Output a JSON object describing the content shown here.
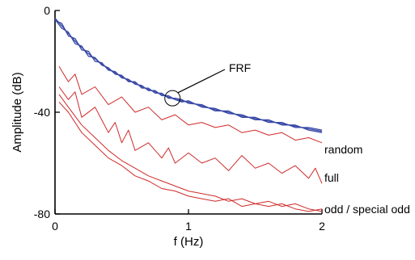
{
  "chart_data": {
    "type": "line",
    "title": "",
    "xlabel": "f (Hz)",
    "ylabel": "Amplitude (dB)",
    "xlim": [
      0,
      2
    ],
    "ylim": [
      -80,
      0
    ],
    "xticks": [
      0,
      1,
      2
    ],
    "yticks": [
      0,
      -40,
      -80
    ],
    "grid": false,
    "legend": "none",
    "colors": {
      "frf": "#3a4aa8",
      "noise": "#d02a2a",
      "axis": "#000000"
    },
    "annotations": {
      "frf": {
        "label": "FRF",
        "x": 0.88,
        "y": -34.5
      },
      "random": "random",
      "full": "full",
      "odd": "odd / special odd"
    },
    "series": [
      {
        "group": "frf",
        "x": [
          0,
          0.05,
          0.1,
          0.15,
          0.2,
          0.25,
          0.3,
          0.35,
          0.4,
          0.45,
          0.5,
          0.55,
          0.6,
          0.65,
          0.7,
          0.75,
          0.8,
          0.85,
          0.9,
          0.95,
          1.0,
          1.1,
          1.2,
          1.3,
          1.4,
          1.5,
          1.6,
          1.7,
          1.8,
          1.9,
          2.0
        ],
        "values": [
          -3,
          -6,
          -9,
          -12,
          -14.5,
          -17,
          -19,
          -21,
          -23,
          -24.5,
          -26,
          -27.5,
          -28.5,
          -30,
          -31,
          -32,
          -33,
          -34,
          -35,
          -35.5,
          -36,
          -37.5,
          -39,
          -40,
          -41.5,
          -42.5,
          -43.5,
          -44.5,
          -45.5,
          -46.5,
          -47.5
        ]
      },
      {
        "group": "frf",
        "x": [
          0,
          0.05,
          0.1,
          0.15,
          0.2,
          0.25,
          0.3,
          0.35,
          0.4,
          0.45,
          0.5,
          0.55,
          0.6,
          0.65,
          0.7,
          0.75,
          0.8,
          0.85,
          0.9,
          0.95,
          1.0,
          1.1,
          1.2,
          1.3,
          1.4,
          1.5,
          1.6,
          1.7,
          1.8,
          1.9,
          2.0
        ],
        "values": [
          -4,
          -5,
          -10,
          -11,
          -15.5,
          -16,
          -20,
          -20.5,
          -23.5,
          -24,
          -26.5,
          -27,
          -29,
          -29.5,
          -31.5,
          -31.5,
          -33.5,
          -33.5,
          -35,
          -36,
          -35.5,
          -38,
          -38.5,
          -40.5,
          -41,
          -43,
          -43,
          -45,
          -45,
          -47,
          -48
        ]
      },
      {
        "group": "frf",
        "x": [
          0,
          0.05,
          0.1,
          0.15,
          0.2,
          0.25,
          0.3,
          0.35,
          0.4,
          0.45,
          0.5,
          0.55,
          0.6,
          0.65,
          0.7,
          0.75,
          0.8,
          0.85,
          0.9,
          0.95,
          1.0,
          1.1,
          1.2,
          1.3,
          1.4,
          1.5,
          1.6,
          1.7,
          1.8,
          1.9,
          2.0
        ],
        "values": [
          -3.5,
          -7,
          -8.5,
          -13,
          -14,
          -18,
          -18.5,
          -21.5,
          -22.5,
          -25,
          -25.5,
          -28,
          -28,
          -30.5,
          -30.5,
          -32.5,
          -32.5,
          -34.5,
          -34.5,
          -35,
          -36.5,
          -37,
          -39.5,
          -39.5,
          -42,
          -42,
          -44,
          -44,
          -46,
          -46,
          -47
        ]
      },
      {
        "group": "random",
        "x": [
          0.03,
          0.1,
          0.15,
          0.2,
          0.3,
          0.4,
          0.5,
          0.6,
          0.7,
          0.8,
          0.9,
          1.0,
          1.1,
          1.2,
          1.3,
          1.4,
          1.5,
          1.6,
          1.7,
          1.8,
          1.9,
          2.0
        ],
        "values": [
          -22,
          -28,
          -25,
          -33,
          -30,
          -37,
          -34,
          -40,
          -38,
          -43,
          -41,
          -45,
          -44,
          -46,
          -45,
          -48,
          -47,
          -49,
          -48,
          -51,
          -50,
          -52
        ]
      },
      {
        "group": "full",
        "x": [
          0.03,
          0.1,
          0.15,
          0.2,
          0.3,
          0.4,
          0.45,
          0.5,
          0.55,
          0.6,
          0.7,
          0.8,
          0.85,
          0.9,
          1.0,
          1.1,
          1.2,
          1.3,
          1.4,
          1.5,
          1.6,
          1.7,
          1.8,
          1.9,
          1.95,
          2.0
        ],
        "values": [
          -30,
          -35,
          -32,
          -42,
          -38,
          -48,
          -44,
          -52,
          -47,
          -55,
          -52,
          -58,
          -54,
          -60,
          -56,
          -60,
          -58,
          -63,
          -57,
          -62,
          -60,
          -64,
          -61,
          -66,
          -62,
          -68
        ]
      },
      {
        "group": "odd",
        "x": [
          0.03,
          0.1,
          0.2,
          0.3,
          0.4,
          0.5,
          0.6,
          0.7,
          0.8,
          0.9,
          1.0,
          1.1,
          1.2,
          1.3,
          1.4,
          1.5,
          1.6,
          1.7,
          1.8,
          1.9,
          2.0
        ],
        "values": [
          -33,
          -38,
          -45,
          -50,
          -55,
          -59,
          -62,
          -65,
          -67,
          -69,
          -71,
          -72,
          -73,
          -75,
          -74,
          -76,
          -75,
          -77,
          -76,
          -78,
          -79
        ]
      },
      {
        "group": "odd",
        "x": [
          0.03,
          0.1,
          0.2,
          0.3,
          0.4,
          0.5,
          0.6,
          0.7,
          0.8,
          0.9,
          1.0,
          1.1,
          1.2,
          1.3,
          1.4,
          1.5,
          1.6,
          1.7,
          1.8,
          1.9,
          2.0
        ],
        "values": [
          -36,
          -40,
          -48,
          -53,
          -58,
          -61,
          -65,
          -67,
          -70,
          -71,
          -73,
          -74,
          -75,
          -74,
          -77,
          -76,
          -77,
          -76,
          -78,
          -79,
          -78
        ]
      }
    ]
  }
}
